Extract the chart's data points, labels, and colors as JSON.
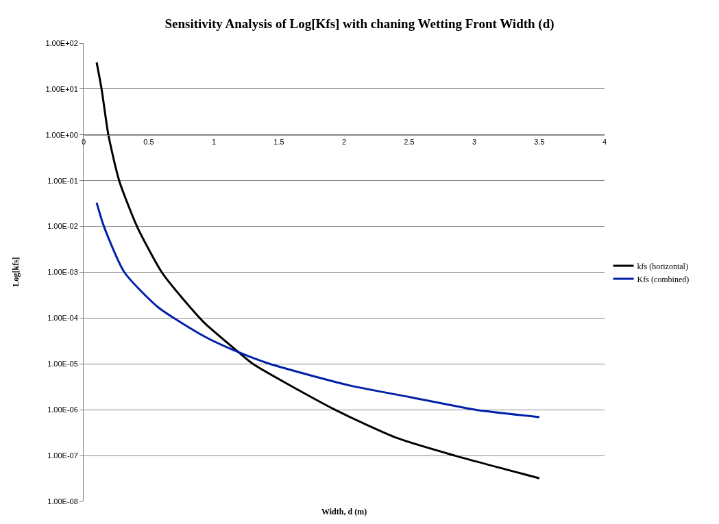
{
  "chart_data": {
    "type": "line",
    "title": "Sensitivity Analysis of Log[Kfs] with chaning Wetting Front Width (d)",
    "xlabel": "Width, d (m)",
    "ylabel": "Log[kfs]",
    "log": "y",
    "grid": "y",
    "legend": "right",
    "marker": "none",
    "line_style": "solid",
    "xlim": [
      0,
      4
    ],
    "xticks": [
      0,
      0.5,
      1,
      1.5,
      2,
      2.5,
      3,
      3.5,
      4
    ],
    "ylim": [
      1e-08,
      100
    ],
    "yticks": [
      {
        "value": 100,
        "label": "1.00E+02"
      },
      {
        "value": 10,
        "label": "1.00E+01"
      },
      {
        "value": 1,
        "label": "1.00E+00"
      },
      {
        "value": 0.1,
        "label": "1.00E-01"
      },
      {
        "value": 0.01,
        "label": "1.00E-02"
      },
      {
        "value": 0.001,
        "label": "1.00E-03"
      },
      {
        "value": 0.0001,
        "label": "1.00E-04"
      },
      {
        "value": 1e-05,
        "label": "1.00E-05"
      },
      {
        "value": 1e-06,
        "label": "1.00E-06"
      },
      {
        "value": 1e-07,
        "label": "1.00E-07"
      },
      {
        "value": 1e-08,
        "label": "1.00E-08"
      }
    ],
    "series": [
      {
        "name": "kfs (horizontal)",
        "color": "#000000",
        "x": [
          0.1,
          0.138,
          0.19,
          0.273,
          0.41,
          0.6,
          0.82,
          0.933,
          1.19,
          1.3,
          1.93,
          2.41,
          2.85,
          3.5
        ],
        "values": [
          38,
          10,
          1,
          0.1,
          0.01,
          0.001,
          0.00017,
          7.6e-05,
          1.8e-05,
          1e-05,
          1e-06,
          2.4e-07,
          1e-07,
          3.2e-08
        ]
      },
      {
        "name": "Kfs (combined)",
        "color": "#0020a8",
        "x": [
          0.1,
          0.156,
          0.313,
          0.575,
          0.933,
          1.19,
          1.43,
          2.04,
          2.5,
          3.01,
          3.5
        ],
        "values": [
          0.033,
          0.01,
          0.001,
          0.00017,
          3.9e-05,
          1.8e-05,
          1e-05,
          3.4e-06,
          1.9e-06,
          1e-06,
          6.9e-07
        ]
      }
    ]
  }
}
